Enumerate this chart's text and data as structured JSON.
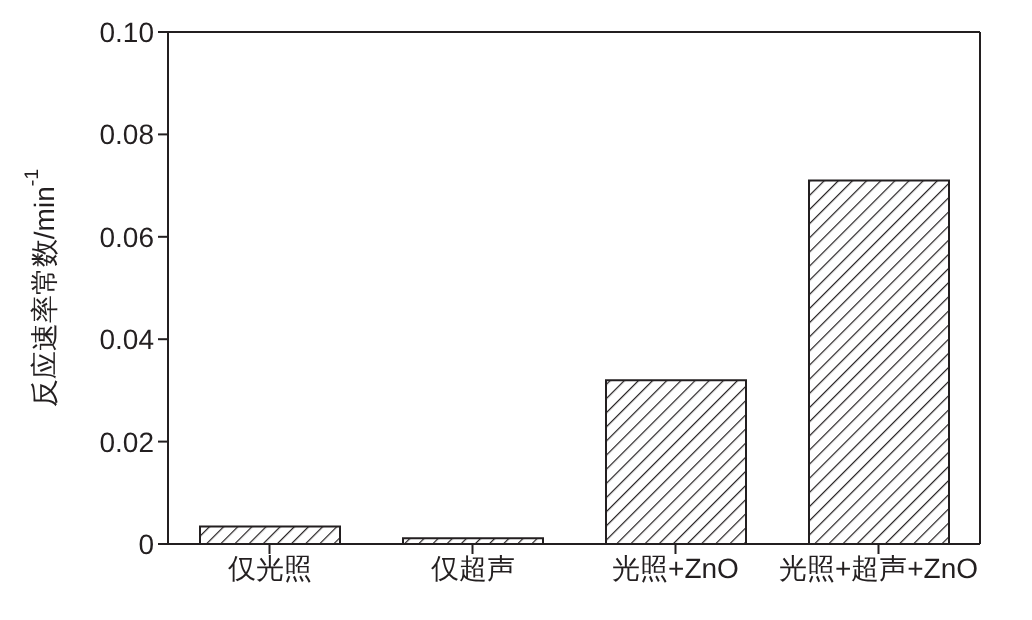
{
  "chart_data": {
    "type": "bar",
    "ylabel": "反应速率常数/min$^{-1}$",
    "categories": [
      "仅光照",
      "仅超声",
      "光照+ZnO",
      "光照+超声+ZnO"
    ],
    "values": [
      0.0034,
      0.0011,
      0.032,
      0.071
    ],
    "color": "#231f20",
    "ylim": [
      0,
      0.1
    ],
    "yticks": [
      0,
      {
        "value": 0.02,
        "label": "0.02"
      },
      {
        "value": 0.04,
        "label": "0.04"
      },
      {
        "value": 0.06,
        "label": "0.06"
      },
      {
        "value": 0.08,
        "label": "0.08"
      },
      {
        "value": 0.1,
        "label": "0.10"
      }
    ],
    "grid": false,
    "legend": false
  }
}
